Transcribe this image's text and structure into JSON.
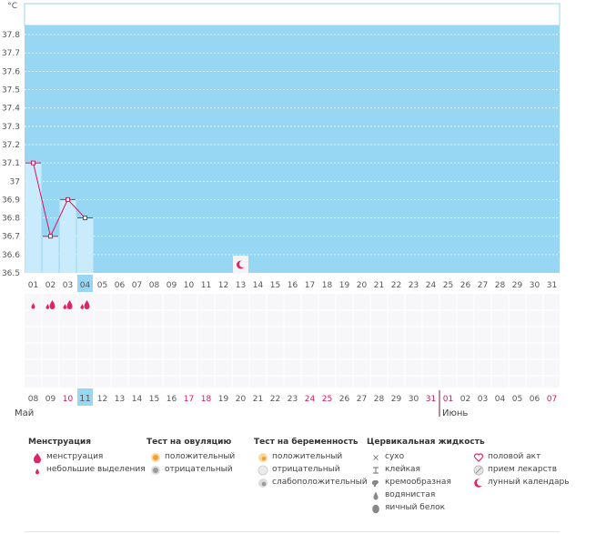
{
  "chart_data": {
    "type": "line",
    "title": "",
    "unit_label": "°C",
    "ylim": [
      36.5,
      37.85
    ],
    "y_ticks": [
      "36.5",
      "36.6",
      "36.7",
      "36.8",
      "36.9",
      "37",
      "37.1",
      "37.2",
      "37.3",
      "37.4",
      "37.5",
      "37.6",
      "37.7",
      "37.8"
    ],
    "cycle_days": [
      "01",
      "02",
      "03",
      "04",
      "05",
      "06",
      "07",
      "08",
      "09",
      "10",
      "11",
      "12",
      "13",
      "14",
      "15",
      "16",
      "17",
      "18",
      "19",
      "20",
      "21",
      "22",
      "23",
      "24",
      "25",
      "26",
      "27",
      "28",
      "29",
      "30",
      "31"
    ],
    "current_day_index": 3,
    "series": [
      {
        "name": "temperature",
        "days": [
          1,
          2,
          3,
          4
        ],
        "values": [
          37.1,
          36.7,
          36.9,
          36.8
        ]
      }
    ],
    "moon_day": 13,
    "menstruation": [
      {
        "day": 1,
        "kind": "light"
      },
      {
        "day": 2,
        "kind": "heavy"
      },
      {
        "day": 3,
        "kind": "heavy"
      },
      {
        "day": 4,
        "kind": "heavy"
      }
    ],
    "calendar_dates": [
      {
        "label": "08",
        "weekend": false
      },
      {
        "label": "09",
        "weekend": false
      },
      {
        "label": "10",
        "weekend": true
      },
      {
        "label": "11",
        "weekend": false
      },
      {
        "label": "12",
        "weekend": false
      },
      {
        "label": "13",
        "weekend": false
      },
      {
        "label": "14",
        "weekend": false
      },
      {
        "label": "15",
        "weekend": false
      },
      {
        "label": "16",
        "weekend": false
      },
      {
        "label": "17",
        "weekend": true
      },
      {
        "label": "18",
        "weekend": true
      },
      {
        "label": "19",
        "weekend": false
      },
      {
        "label": "20",
        "weekend": false
      },
      {
        "label": "21",
        "weekend": false
      },
      {
        "label": "22",
        "weekend": false
      },
      {
        "label": "23",
        "weekend": false
      },
      {
        "label": "24",
        "weekend": true
      },
      {
        "label": "25",
        "weekend": true
      },
      {
        "label": "26",
        "weekend": false
      },
      {
        "label": "27",
        "weekend": false
      },
      {
        "label": "28",
        "weekend": false
      },
      {
        "label": "29",
        "weekend": false
      },
      {
        "label": "30",
        "weekend": false
      },
      {
        "label": "31",
        "weekend": true
      },
      {
        "label": "01",
        "weekend": true
      },
      {
        "label": "02",
        "weekend": false
      },
      {
        "label": "03",
        "weekend": false
      },
      {
        "label": "04",
        "weekend": false
      },
      {
        "label": "05",
        "weekend": false
      },
      {
        "label": "06",
        "weekend": false
      },
      {
        "label": "07",
        "weekend": true
      }
    ],
    "month_labels": [
      {
        "label": "Май",
        "start_index": 0
      },
      {
        "label": "Июнь",
        "start_index": 24
      }
    ]
  },
  "legend": {
    "menstruation": {
      "title": "Менструация",
      "items": [
        {
          "icon": "drop-heavy-icon",
          "label": "менструация"
        },
        {
          "icon": "drop-light-icon",
          "label": "небольшие выделения"
        }
      ]
    },
    "ovulation": {
      "title": "Тест на овуляцию",
      "items": [
        {
          "icon": "ovulation-positive-icon",
          "label": "положительный"
        },
        {
          "icon": "ovulation-negative-icon",
          "label": "отрицательный"
        }
      ]
    },
    "pregnancy": {
      "title": "Тест на беременность",
      "items": [
        {
          "icon": "pregnancy-positive-icon",
          "label": "положительный"
        },
        {
          "icon": "pregnancy-negative-icon",
          "label": "отрицательный"
        },
        {
          "icon": "pregnancy-weak-icon",
          "label": "слабоположительный"
        }
      ]
    },
    "cervical": {
      "title": "Цервикальная жидкость",
      "items": [
        {
          "icon": "dry-icon",
          "label": "сухо"
        },
        {
          "icon": "sticky-icon",
          "label": "клейкая"
        },
        {
          "icon": "creamy-icon",
          "label": "кремообразная"
        },
        {
          "icon": "watery-icon",
          "label": "водянистая"
        },
        {
          "icon": "egg-white-icon",
          "label": "яичный белок"
        }
      ]
    },
    "other": {
      "items": [
        {
          "icon": "heart-icon",
          "label": "половой акт"
        },
        {
          "icon": "pill-icon",
          "label": "прием лекарств"
        },
        {
          "icon": "moon-icon",
          "label": "лунный календарь"
        }
      ]
    }
  },
  "colors": {
    "plot_bg": "#97d7f3",
    "bar_fill": "#c9ebfb",
    "line": "#d9135a",
    "weekend": "#d9135a",
    "current": "#97d7f3"
  }
}
